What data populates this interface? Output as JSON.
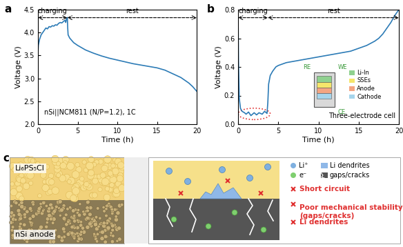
{
  "chart_data": [
    {
      "type": "line",
      "panel_label": "a",
      "x_label": "Time (h)",
      "y_label": "Voltage (V)",
      "xlim": [
        0,
        20
      ],
      "ylim": [
        2.0,
        4.5
      ],
      "xticks": [
        0,
        5,
        10,
        15,
        20
      ],
      "yticks": [
        {
          "value": 2.0,
          "label": "2.0"
        },
        {
          "value": 2.5,
          "label": "2.5"
        },
        {
          "value": 3.0,
          "label": "3.0"
        },
        {
          "value": 3.5,
          "label": "3.5"
        },
        {
          "value": 4.0,
          "label": "4.0"
        },
        {
          "value": 4.5,
          "label": "4.5"
        }
      ],
      "color": "#2c7bb6",
      "x": [
        0,
        0.05,
        0.2,
        0.4,
        0.6,
        0.8,
        1.0,
        1.2,
        1.4,
        1.6,
        1.8,
        2.0,
        2.2,
        2.4,
        2.6,
        2.8,
        3.0,
        3.2,
        3.4,
        3.5,
        3.6,
        3.7,
        3.75,
        3.8,
        4.0,
        4.5,
        5,
        6,
        7,
        8,
        9,
        10,
        11,
        12,
        13,
        14,
        15,
        16,
        17,
        18,
        19,
        19.5,
        20
      ],
      "values": [
        3.55,
        3.72,
        3.85,
        3.95,
        4.0,
        4.05,
        4.1,
        4.08,
        4.13,
        4.12,
        4.15,
        4.14,
        4.17,
        4.16,
        4.2,
        4.22,
        4.21,
        4.24,
        4.27,
        4.22,
        4.3,
        4.33,
        4.1,
        3.95,
        3.88,
        3.78,
        3.72,
        3.62,
        3.55,
        3.49,
        3.44,
        3.4,
        3.36,
        3.32,
        3.29,
        3.26,
        3.23,
        3.18,
        3.1,
        3.02,
        2.9,
        2.82,
        2.72
      ],
      "annotations": [
        {
          "text": "charging",
          "from": 0,
          "to": 3.7
        },
        {
          "text": "rest",
          "from": 3.7,
          "to": 20
        },
        {
          "text": "nSi||NCM811 (N/P=1.2), 1C"
        }
      ]
    },
    {
      "type": "line",
      "panel_label": "b",
      "x_label": "Time (h)",
      "y_label": "Voltage (V)",
      "xlim": [
        0,
        20
      ],
      "ylim": [
        0.0,
        0.8
      ],
      "xticks": [
        0,
        5,
        10,
        15,
        20
      ],
      "yticks": [
        {
          "value": 0.0,
          "label": "0.0"
        },
        {
          "value": 0.2,
          "label": "0.2"
        },
        {
          "value": 0.4,
          "label": "0.4"
        },
        {
          "value": 0.6,
          "label": "0.6"
        },
        {
          "value": 0.8,
          "label": "0.8"
        }
      ],
      "color": "#2c7bb6",
      "x": [
        0,
        0.05,
        0.15,
        0.3,
        0.5,
        0.8,
        1.0,
        1.3,
        1.6,
        2.0,
        2.3,
        2.6,
        3.0,
        3.3,
        3.6,
        3.7,
        3.8,
        4.0,
        4.3,
        4.7,
        5,
        6,
        7,
        8,
        9,
        10,
        11,
        12,
        13,
        14,
        15,
        16,
        17,
        17.5,
        18,
        18.5,
        19,
        19.5,
        20
      ],
      "values": [
        0.78,
        0.45,
        0.18,
        0.11,
        0.09,
        0.08,
        0.07,
        0.085,
        0.06,
        0.08,
        0.065,
        0.08,
        0.07,
        0.09,
        0.075,
        0.15,
        0.28,
        0.34,
        0.37,
        0.4,
        0.41,
        0.43,
        0.44,
        0.45,
        0.46,
        0.47,
        0.48,
        0.49,
        0.5,
        0.51,
        0.53,
        0.55,
        0.58,
        0.6,
        0.63,
        0.67,
        0.71,
        0.76,
        0.8
      ],
      "annotations": [
        {
          "text": "charging",
          "from": 0,
          "to": 3.7
        },
        {
          "text": "rest",
          "from": 3.7,
          "to": 20
        }
      ],
      "inset": {
        "title": "Three-electrode cell",
        "electrodes": [
          "RE",
          "WE",
          "CE"
        ],
        "layers": [
          {
            "name": "Li-In",
            "color": "#8fd18f"
          },
          {
            "name": "SSEs",
            "color": "#f5e66b"
          },
          {
            "name": "Anode",
            "color": "#f4a582"
          },
          {
            "name": "Cathode",
            "color": "#a6d5ec"
          }
        ]
      }
    }
  ],
  "panel_c": {
    "panel_label": "c",
    "layers": [
      "Li₆PS₅Cl",
      "nSi anode"
    ],
    "key": [
      {
        "text": "Li⁺",
        "color": "#7fb0e0",
        "marker": "circle"
      },
      {
        "text": "e⁻",
        "color": "#7fcf6f",
        "marker": "circle"
      },
      {
        "text": "Li dendrites",
        "color": "#8fb8e8",
        "marker": "square"
      },
      {
        "text": "gaps/cracks",
        "color": "#555555",
        "marker": "square"
      }
    ],
    "issues": [
      "Short circuit",
      "Poor mechanical stability\n(gaps/cracks)",
      "Li dendrites"
    ],
    "color": "#e03030"
  }
}
